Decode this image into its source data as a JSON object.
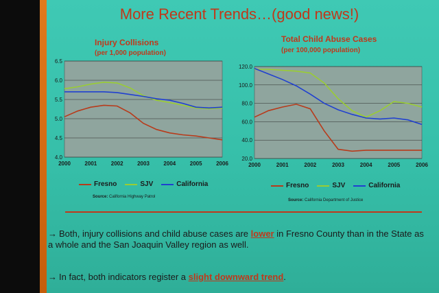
{
  "slide": {
    "title": "More Recent Trends…(good news!)",
    "divider_color": "#c0381a"
  },
  "colors": {
    "Fresno": "#b83a1a",
    "SJV": "#9acd32",
    "California": "#2040d0",
    "plot_bg": "#8fa59e"
  },
  "chart_data": [
    {
      "type": "line",
      "title": "Injury Collisions",
      "subtitle": "(per 1,000 population)",
      "x": [
        2000,
        2000.5,
        2001,
        2001.5,
        2002,
        2002.5,
        2003,
        2003.5,
        2004,
        2004.5,
        2005,
        2005.5,
        2006
      ],
      "xticks": [
        "2000",
        "2001",
        "2002",
        "2003",
        "2004",
        "2005",
        "2006"
      ],
      "ylim": [
        4.0,
        6.5
      ],
      "yticks": [
        "4.0",
        "4.5",
        "5.0",
        "5.5",
        "6.0",
        "6.5"
      ],
      "series": [
        {
          "name": "Fresno",
          "values": [
            5.05,
            5.2,
            5.3,
            5.35,
            5.33,
            5.15,
            4.88,
            4.72,
            4.63,
            4.58,
            4.55,
            4.5,
            4.45
          ]
        },
        {
          "name": "SJV",
          "values": [
            5.78,
            5.83,
            5.9,
            5.95,
            5.93,
            5.8,
            5.6,
            5.48,
            5.42,
            5.35,
            5.28,
            5.26,
            5.28
          ]
        },
        {
          "name": "California",
          "values": [
            5.7,
            5.7,
            5.7,
            5.7,
            5.68,
            5.63,
            5.58,
            5.52,
            5.48,
            5.4,
            5.3,
            5.28,
            5.3
          ]
        }
      ],
      "source_label": "Source:",
      "source": "California Highway Patrol"
    },
    {
      "type": "line",
      "title": "Total Child Abuse Cases",
      "subtitle": "(per 100,000 population)",
      "x": [
        2000,
        2000.5,
        2001,
        2001.5,
        2002,
        2002.5,
        2003,
        2003.5,
        2004,
        2004.5,
        2005,
        2005.5,
        2006
      ],
      "xticks": [
        "2000",
        "2001",
        "2002",
        "2003",
        "2004",
        "2005",
        "2006"
      ],
      "ylim": [
        20.0,
        120.0
      ],
      "yticks": [
        "20.0",
        "40.0",
        "60.0",
        "80.0",
        "100.0",
        "120.0"
      ],
      "series": [
        {
          "name": "Fresno",
          "values": [
            65,
            72,
            76,
            79,
            74,
            50,
            30,
            28,
            29,
            29,
            29,
            29,
            29
          ]
        },
        {
          "name": "SJV",
          "values": [
            117,
            117,
            116,
            115,
            113,
            102,
            85,
            72,
            65,
            72,
            82,
            80,
            76
          ]
        },
        {
          "name": "California",
          "values": [
            118,
            112,
            106,
            99,
            90,
            80,
            73,
            68,
            64,
            63,
            64,
            62,
            57
          ]
        }
      ],
      "source_label": "Source:",
      "source": "California Department of Justice"
    }
  ],
  "bullets": [
    {
      "arrow": "→",
      "pre": "Both, injury collisions and child abuse cases are ",
      "emph": "lower",
      "post": " in Fresno County than in the State as a whole and the San Joaquin Valley region as well."
    },
    {
      "arrow": "→",
      "pre": "In fact, both indicators register a ",
      "emph": "slight downward trend",
      "post": "."
    }
  ]
}
